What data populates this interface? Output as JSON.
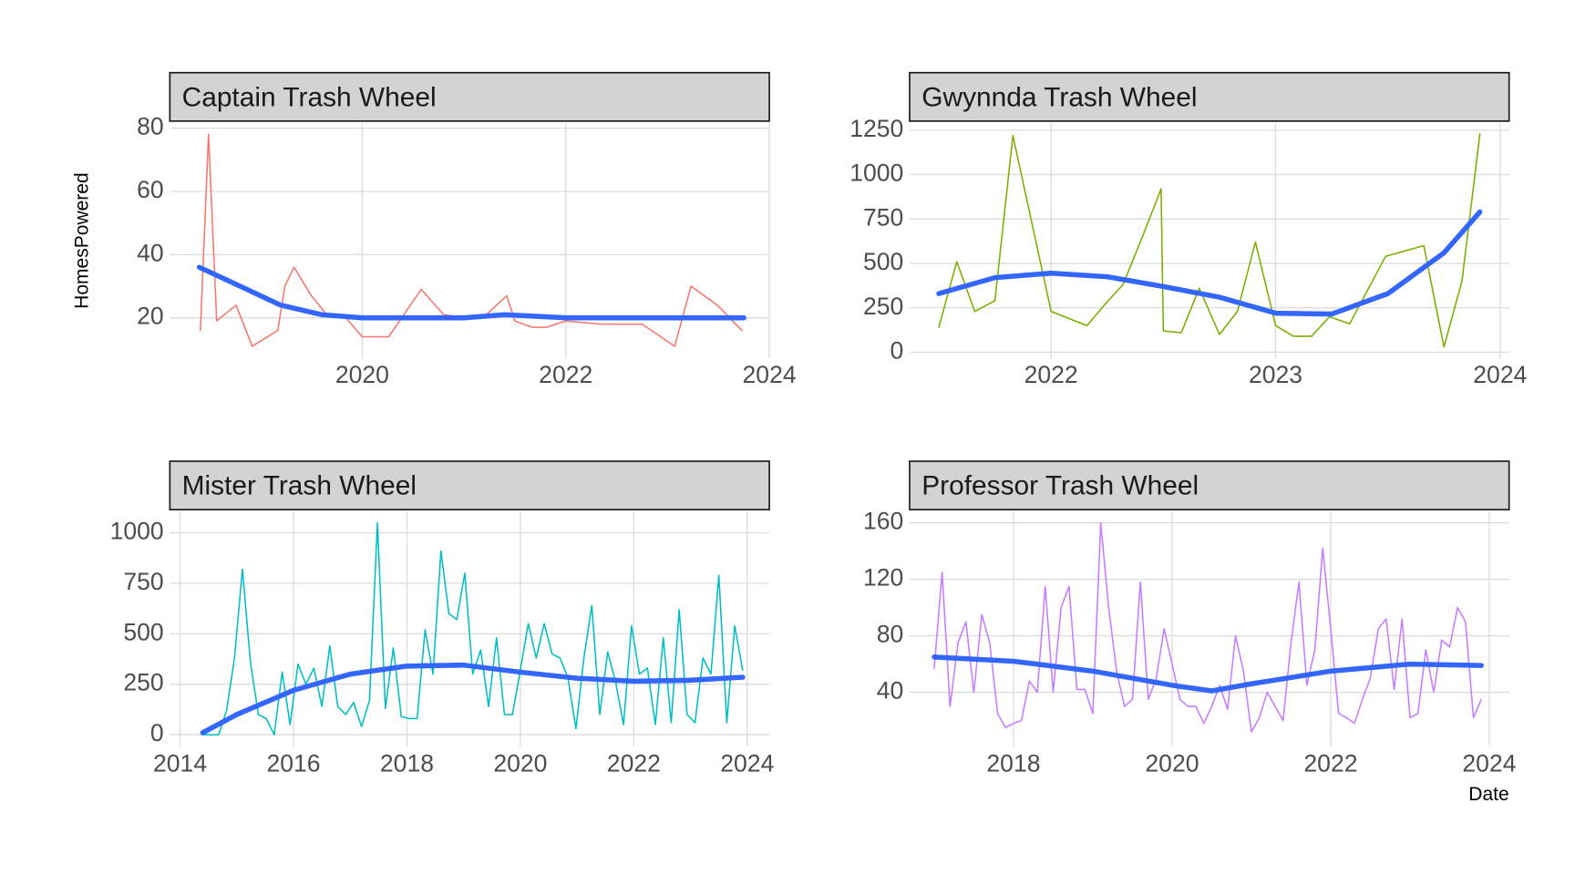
{
  "chart_data": [
    {
      "type": "line",
      "title": "Captain Trash Wheel",
      "ylabel": "HomesPowered",
      "xlim": [
        2018.11,
        2024.0
      ],
      "ylim": [
        7.2,
        81.6
      ],
      "xticks": [
        2020,
        2022,
        2024
      ],
      "yticks": [
        20,
        40,
        60,
        80
      ],
      "grid": true,
      "series": [
        {
          "color": "#F8766D",
          "width": 1.4,
          "x": [
            2018.41,
            2018.49,
            2018.57,
            2018.76,
            2018.92,
            2019.17,
            2019.24,
            2019.33,
            2019.5,
            2019.65,
            2019.84,
            2020.0,
            2020.26,
            2020.58,
            2020.8,
            2021.02,
            2021.22,
            2021.42,
            2021.5,
            2021.67,
            2021.81,
            2022.0,
            2022.35,
            2022.75,
            2023.07,
            2023.23,
            2023.49,
            2023.73
          ],
          "values": [
            16,
            78,
            19,
            24,
            11,
            16,
            30,
            36,
            27,
            21,
            20,
            14,
            14,
            29,
            21,
            20,
            21,
            27,
            19,
            17,
            17,
            19,
            18,
            18,
            11,
            30,
            24,
            16
          ]
        },
        {
          "color": "#3366FF",
          "width": 5,
          "x": [
            2018.4,
            2018.8,
            2019.2,
            2019.6,
            2020.0,
            2020.5,
            2021.0,
            2021.4,
            2022.0,
            2022.5,
            2023.0,
            2023.5,
            2023.75
          ],
          "values": [
            36,
            30,
            24,
            21,
            20,
            20,
            20,
            21,
            20,
            20,
            20,
            20,
            20
          ]
        }
      ]
    },
    {
      "type": "line",
      "title": "Gwynnda Trash Wheel",
      "xlim": [
        2021.37,
        2024.04
      ],
      "ylim": [
        -34,
        1290
      ],
      "xticks": [
        2022,
        2023,
        2024
      ],
      "yticks": [
        0,
        250,
        500,
        750,
        1000,
        1250
      ],
      "grid": true,
      "series": [
        {
          "color": "#7CAE00",
          "width": 1.4,
          "x": [
            2021.5,
            2021.58,
            2021.66,
            2021.75,
            2021.83,
            2022.0,
            2022.16,
            2022.24,
            2022.32,
            2022.41,
            2022.49,
            2022.5,
            2022.58,
            2022.66,
            2022.75,
            2022.83,
            2022.91,
            2023.0,
            2023.08,
            2023.16,
            2023.24,
            2023.33,
            2023.49,
            2023.66,
            2023.75,
            2023.83,
            2023.91
          ],
          "values": [
            140,
            510,
            230,
            290,
            1220,
            230,
            150,
            270,
            380,
            660,
            920,
            120,
            110,
            360,
            100,
            230,
            620,
            150,
            90,
            90,
            200,
            160,
            540,
            600,
            30,
            400,
            1230
          ]
        },
        {
          "color": "#3366FF",
          "width": 5,
          "x": [
            2021.5,
            2021.75,
            2022.0,
            2022.25,
            2022.5,
            2022.75,
            2023.0,
            2023.25,
            2023.5,
            2023.75,
            2023.91
          ],
          "values": [
            330,
            420,
            445,
            425,
            370,
            310,
            220,
            215,
            330,
            560,
            790
          ]
        }
      ]
    },
    {
      "type": "line",
      "title": "Mister Trash Wheel",
      "xlim": [
        2013.82,
        2024.39
      ],
      "ylim": [
        -60,
        1105
      ],
      "xticks": [
        2014,
        2016,
        2018,
        2020,
        2022,
        2024
      ],
      "yticks": [
        0,
        250,
        500,
        750,
        1000
      ],
      "grid": true,
      "series": [
        {
          "color": "#00BFC4",
          "width": 1.4,
          "x": [
            2014.4,
            2014.54,
            2014.68,
            2014.82,
            2014.96,
            2015.1,
            2015.24,
            2015.38,
            2015.52,
            2015.66,
            2015.8,
            2015.94,
            2016.08,
            2016.22,
            2016.36,
            2016.5,
            2016.64,
            2016.78,
            2016.92,
            2017.06,
            2017.2,
            2017.34,
            2017.48,
            2017.62,
            2017.76,
            2017.9,
            2018.04,
            2018.18,
            2018.32,
            2018.46,
            2018.6,
            2018.74,
            2018.88,
            2019.02,
            2019.16,
            2019.3,
            2019.44,
            2019.58,
            2019.72,
            2019.86,
            2020.0,
            2020.14,
            2020.28,
            2020.42,
            2020.56,
            2020.7,
            2020.84,
            2020.98,
            2021.12,
            2021.26,
            2021.4,
            2021.54,
            2021.68,
            2021.82,
            2021.96,
            2022.1,
            2022.24,
            2022.38,
            2022.52,
            2022.66,
            2022.8,
            2022.94,
            2023.08,
            2023.22,
            2023.36,
            2023.5,
            2023.64,
            2023.78,
            2023.92
          ],
          "values": [
            0,
            0,
            0,
            120,
            380,
            820,
            360,
            100,
            80,
            0,
            310,
            50,
            350,
            250,
            330,
            140,
            440,
            140,
            100,
            160,
            40,
            170,
            1050,
            130,
            430,
            90,
            80,
            80,
            520,
            300,
            910,
            600,
            570,
            800,
            300,
            420,
            140,
            480,
            100,
            100,
            320,
            550,
            380,
            550,
            400,
            380,
            280,
            30,
            380,
            640,
            100,
            410,
            260,
            50,
            540,
            300,
            330,
            50,
            480,
            60,
            620,
            100,
            60,
            380,
            300,
            790,
            60,
            540,
            320
          ]
        },
        {
          "color": "#3366FF",
          "width": 5,
          "x": [
            2014.4,
            2015.0,
            2016.0,
            2017.0,
            2018.0,
            2019.0,
            2020.0,
            2021.0,
            2022.0,
            2023.0,
            2023.92
          ],
          "values": [
            10,
            100,
            220,
            300,
            340,
            345,
            310,
            280,
            265,
            270,
            285
          ]
        }
      ]
    },
    {
      "type": "line",
      "title": "Professor Trash Wheel",
      "xlabel": "Date",
      "xlim": [
        2016.69,
        2024.25
      ],
      "ylim": [
        1.4,
        167.9
      ],
      "xticks": [
        2018,
        2020,
        2022,
        2024
      ],
      "yticks": [
        40,
        80,
        120,
        160
      ],
      "grid": true,
      "series": [
        {
          "color": "#C77CFF",
          "width": 1.4,
          "x": [
            2017.0,
            2017.1,
            2017.2,
            2017.3,
            2017.4,
            2017.5,
            2017.6,
            2017.7,
            2017.8,
            2017.9,
            2018.0,
            2018.1,
            2018.2,
            2018.3,
            2018.4,
            2018.5,
            2018.6,
            2018.7,
            2018.8,
            2018.9,
            2019.0,
            2019.1,
            2019.2,
            2019.3,
            2019.4,
            2019.5,
            2019.6,
            2019.7,
            2019.8,
            2019.9,
            2020.0,
            2020.1,
            2020.2,
            2020.3,
            2020.4,
            2020.5,
            2020.6,
            2020.7,
            2020.8,
            2020.9,
            2021.0,
            2021.1,
            2021.2,
            2021.3,
            2021.4,
            2021.5,
            2021.6,
            2021.7,
            2021.8,
            2021.9,
            2022.0,
            2022.1,
            2022.2,
            2022.3,
            2022.4,
            2022.5,
            2022.6,
            2022.7,
            2022.8,
            2022.9,
            2023.0,
            2023.1,
            2023.2,
            2023.3,
            2023.4,
            2023.5,
            2023.6,
            2023.7,
            2023.8,
            2023.9
          ],
          "values": [
            57,
            125,
            30,
            75,
            90,
            40,
            95,
            75,
            25,
            15,
            18,
            20,
            48,
            40,
            115,
            40,
            100,
            115,
            42,
            42,
            25,
            160,
            100,
            55,
            30,
            35,
            118,
            35,
            50,
            85,
            60,
            35,
            30,
            30,
            18,
            30,
            45,
            28,
            80,
            55,
            12,
            22,
            40,
            30,
            20,
            75,
            118,
            45,
            70,
            142,
            85,
            25,
            22,
            18,
            35,
            50,
            85,
            92,
            42,
            92,
            22,
            25,
            70,
            40,
            77,
            72,
            100,
            90,
            22,
            35
          ]
        },
        {
          "color": "#3366FF",
          "width": 5,
          "x": [
            2017.0,
            2018.0,
            2019.0,
            2020.0,
            2020.5,
            2021.0,
            2022.0,
            2023.0,
            2023.9
          ],
          "values": [
            65,
            62,
            55,
            45,
            41,
            46,
            55,
            60,
            59
          ]
        }
      ]
    }
  ]
}
